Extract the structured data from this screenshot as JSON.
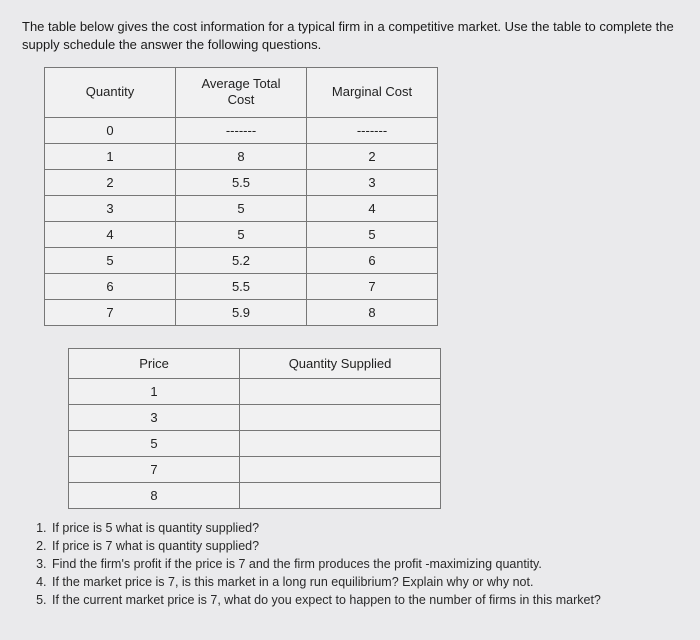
{
  "intro": "The table below gives the cost information for a typical firm in a competitive market. Use the table to complete the supply schedule the answer the following questions.",
  "cost_table": {
    "headers": [
      "Quantity",
      "Average Total Cost",
      "Marginal Cost"
    ],
    "rows": [
      [
        "0",
        "-------",
        "-------"
      ],
      [
        "1",
        "8",
        "2"
      ],
      [
        "2",
        "5.5",
        "3"
      ],
      [
        "3",
        "5",
        "4"
      ],
      [
        "4",
        "5",
        "5"
      ],
      [
        "5",
        "5.2",
        "6"
      ],
      [
        "6",
        "5.5",
        "7"
      ],
      [
        "7",
        "5.9",
        "8"
      ]
    ]
  },
  "supply_table": {
    "headers": [
      "Price",
      "Quantity Supplied"
    ],
    "rows": [
      [
        "1",
        ""
      ],
      [
        "3",
        ""
      ],
      [
        "5",
        ""
      ],
      [
        "7",
        ""
      ],
      [
        "8",
        ""
      ]
    ]
  },
  "questions": [
    "If price is 5 what is quantity supplied?",
    "If price is 7 what is quantity supplied?",
    "Find the firm's profit if the price is 7 and the firm produces the profit -maximizing quantity.",
    "If the market price is 7, is this market in a long run equilibrium? Explain why or why not.",
    "If the current market price is 7, what do you expect to happen to the number of firms in this market?"
  ]
}
